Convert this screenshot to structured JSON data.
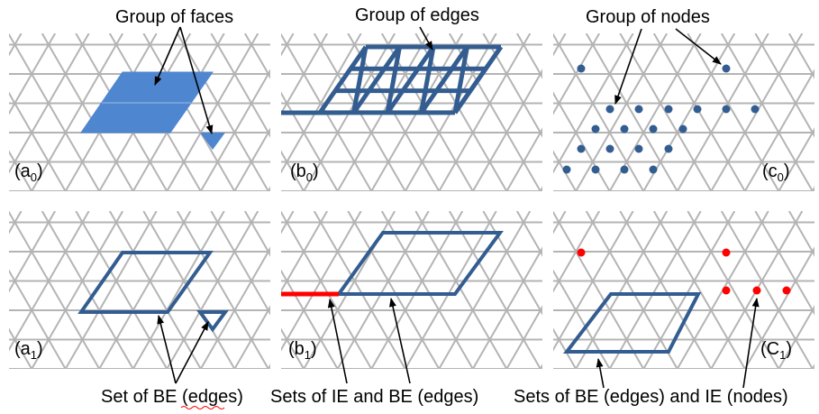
{
  "annotations": {
    "faces": "Group of faces",
    "edges": "Group of edges",
    "nodes": "Group of nodes"
  },
  "panels": [
    {
      "id": "a0",
      "label_main": "(a",
      "label_sub": "0",
      "label_end": ")"
    },
    {
      "id": "b0",
      "label_main": "(b",
      "label_sub": "0",
      "label_end": ")"
    },
    {
      "id": "c0",
      "label_main": "(c",
      "label_sub": "0",
      "label_end": ")"
    },
    {
      "id": "a1",
      "label_main": "(a",
      "label_sub": "1",
      "label_end": ")"
    },
    {
      "id": "b1",
      "label_main": "(b",
      "label_sub": "1",
      "label_end": ")"
    },
    {
      "id": "c1",
      "label_main": "(C",
      "label_sub": "1",
      "label_end": ")"
    }
  ],
  "captions": {
    "a1": "Set of BE (edges)",
    "b1": "Sets of IE and BE (edges)",
    "c1": "Sets of BE (edges) and IE (nodes)"
  },
  "colors": {
    "grid": "#b4b4b4",
    "face_fill": "#4f86d0",
    "group": "#335d91",
    "ie": "#ff0000"
  }
}
